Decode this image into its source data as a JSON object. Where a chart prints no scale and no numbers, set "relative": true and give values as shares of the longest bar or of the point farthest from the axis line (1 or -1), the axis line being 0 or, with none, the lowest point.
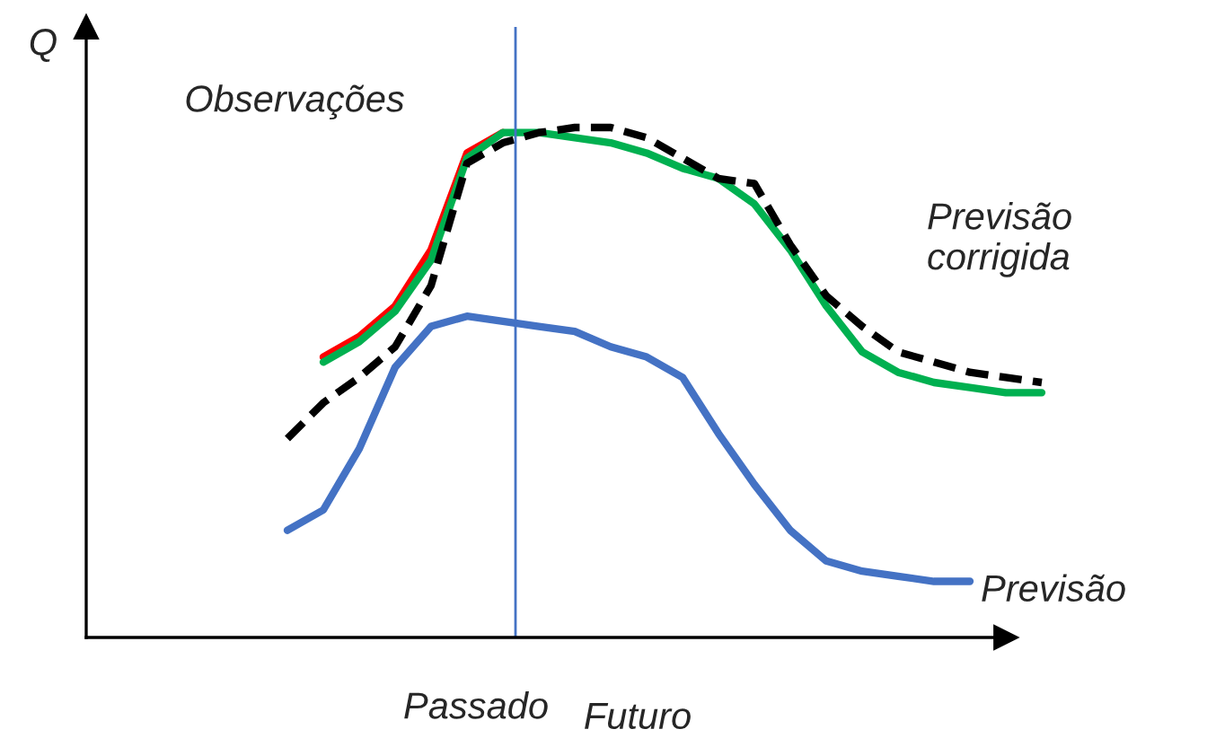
{
  "chart_data": {
    "type": "line",
    "relative": true,
    "categories": [
      null,
      null,
      null,
      null,
      null,
      null,
      null,
      null,
      null,
      null,
      null,
      null,
      null,
      null,
      null,
      null,
      null,
      null,
      null,
      null,
      null,
      null
    ],
    "series": [
      {
        "name": "Previsão",
        "color": "#4472c4",
        "values": [
          0.21,
          0.25,
          0.37,
          0.53,
          0.61,
          0.63,
          0.62,
          0.61,
          0.6,
          0.57,
          0.55,
          0.51,
          0.4,
          0.3,
          0.21,
          0.15,
          0.13,
          0.12,
          0.11,
          0.11,
          null,
          null
        ]
      },
      {
        "name": "Observações",
        "color": "#ff0000",
        "values": [
          null,
          0.55,
          0.59,
          0.65,
          0.76,
          0.95,
          0.99,
          null,
          null,
          null,
          null,
          null,
          null,
          null,
          null,
          null,
          null,
          null,
          null,
          null,
          null,
          null
        ]
      },
      {
        "name": "Previsão corrigida",
        "color": "#00b050",
        "values": [
          null,
          0.54,
          0.58,
          0.64,
          0.74,
          0.94,
          0.99,
          0.99,
          0.98,
          0.97,
          0.95,
          0.92,
          0.9,
          0.85,
          0.76,
          0.65,
          0.56,
          0.52,
          0.5,
          0.49,
          0.48,
          0.48
        ]
      },
      {
        "color": "#000000",
        "line_style": "dashed",
        "values": [
          0.39,
          0.46,
          0.51,
          0.57,
          0.69,
          0.93,
          0.97,
          0.99,
          1.0,
          1.0,
          0.98,
          0.94,
          0.9,
          0.89,
          0.77,
          0.67,
          0.61,
          0.56,
          0.54,
          0.52,
          0.51,
          0.5
        ]
      }
    ],
    "annotations": [
      "Q",
      "Passado",
      "Futuro"
    ]
  }
}
